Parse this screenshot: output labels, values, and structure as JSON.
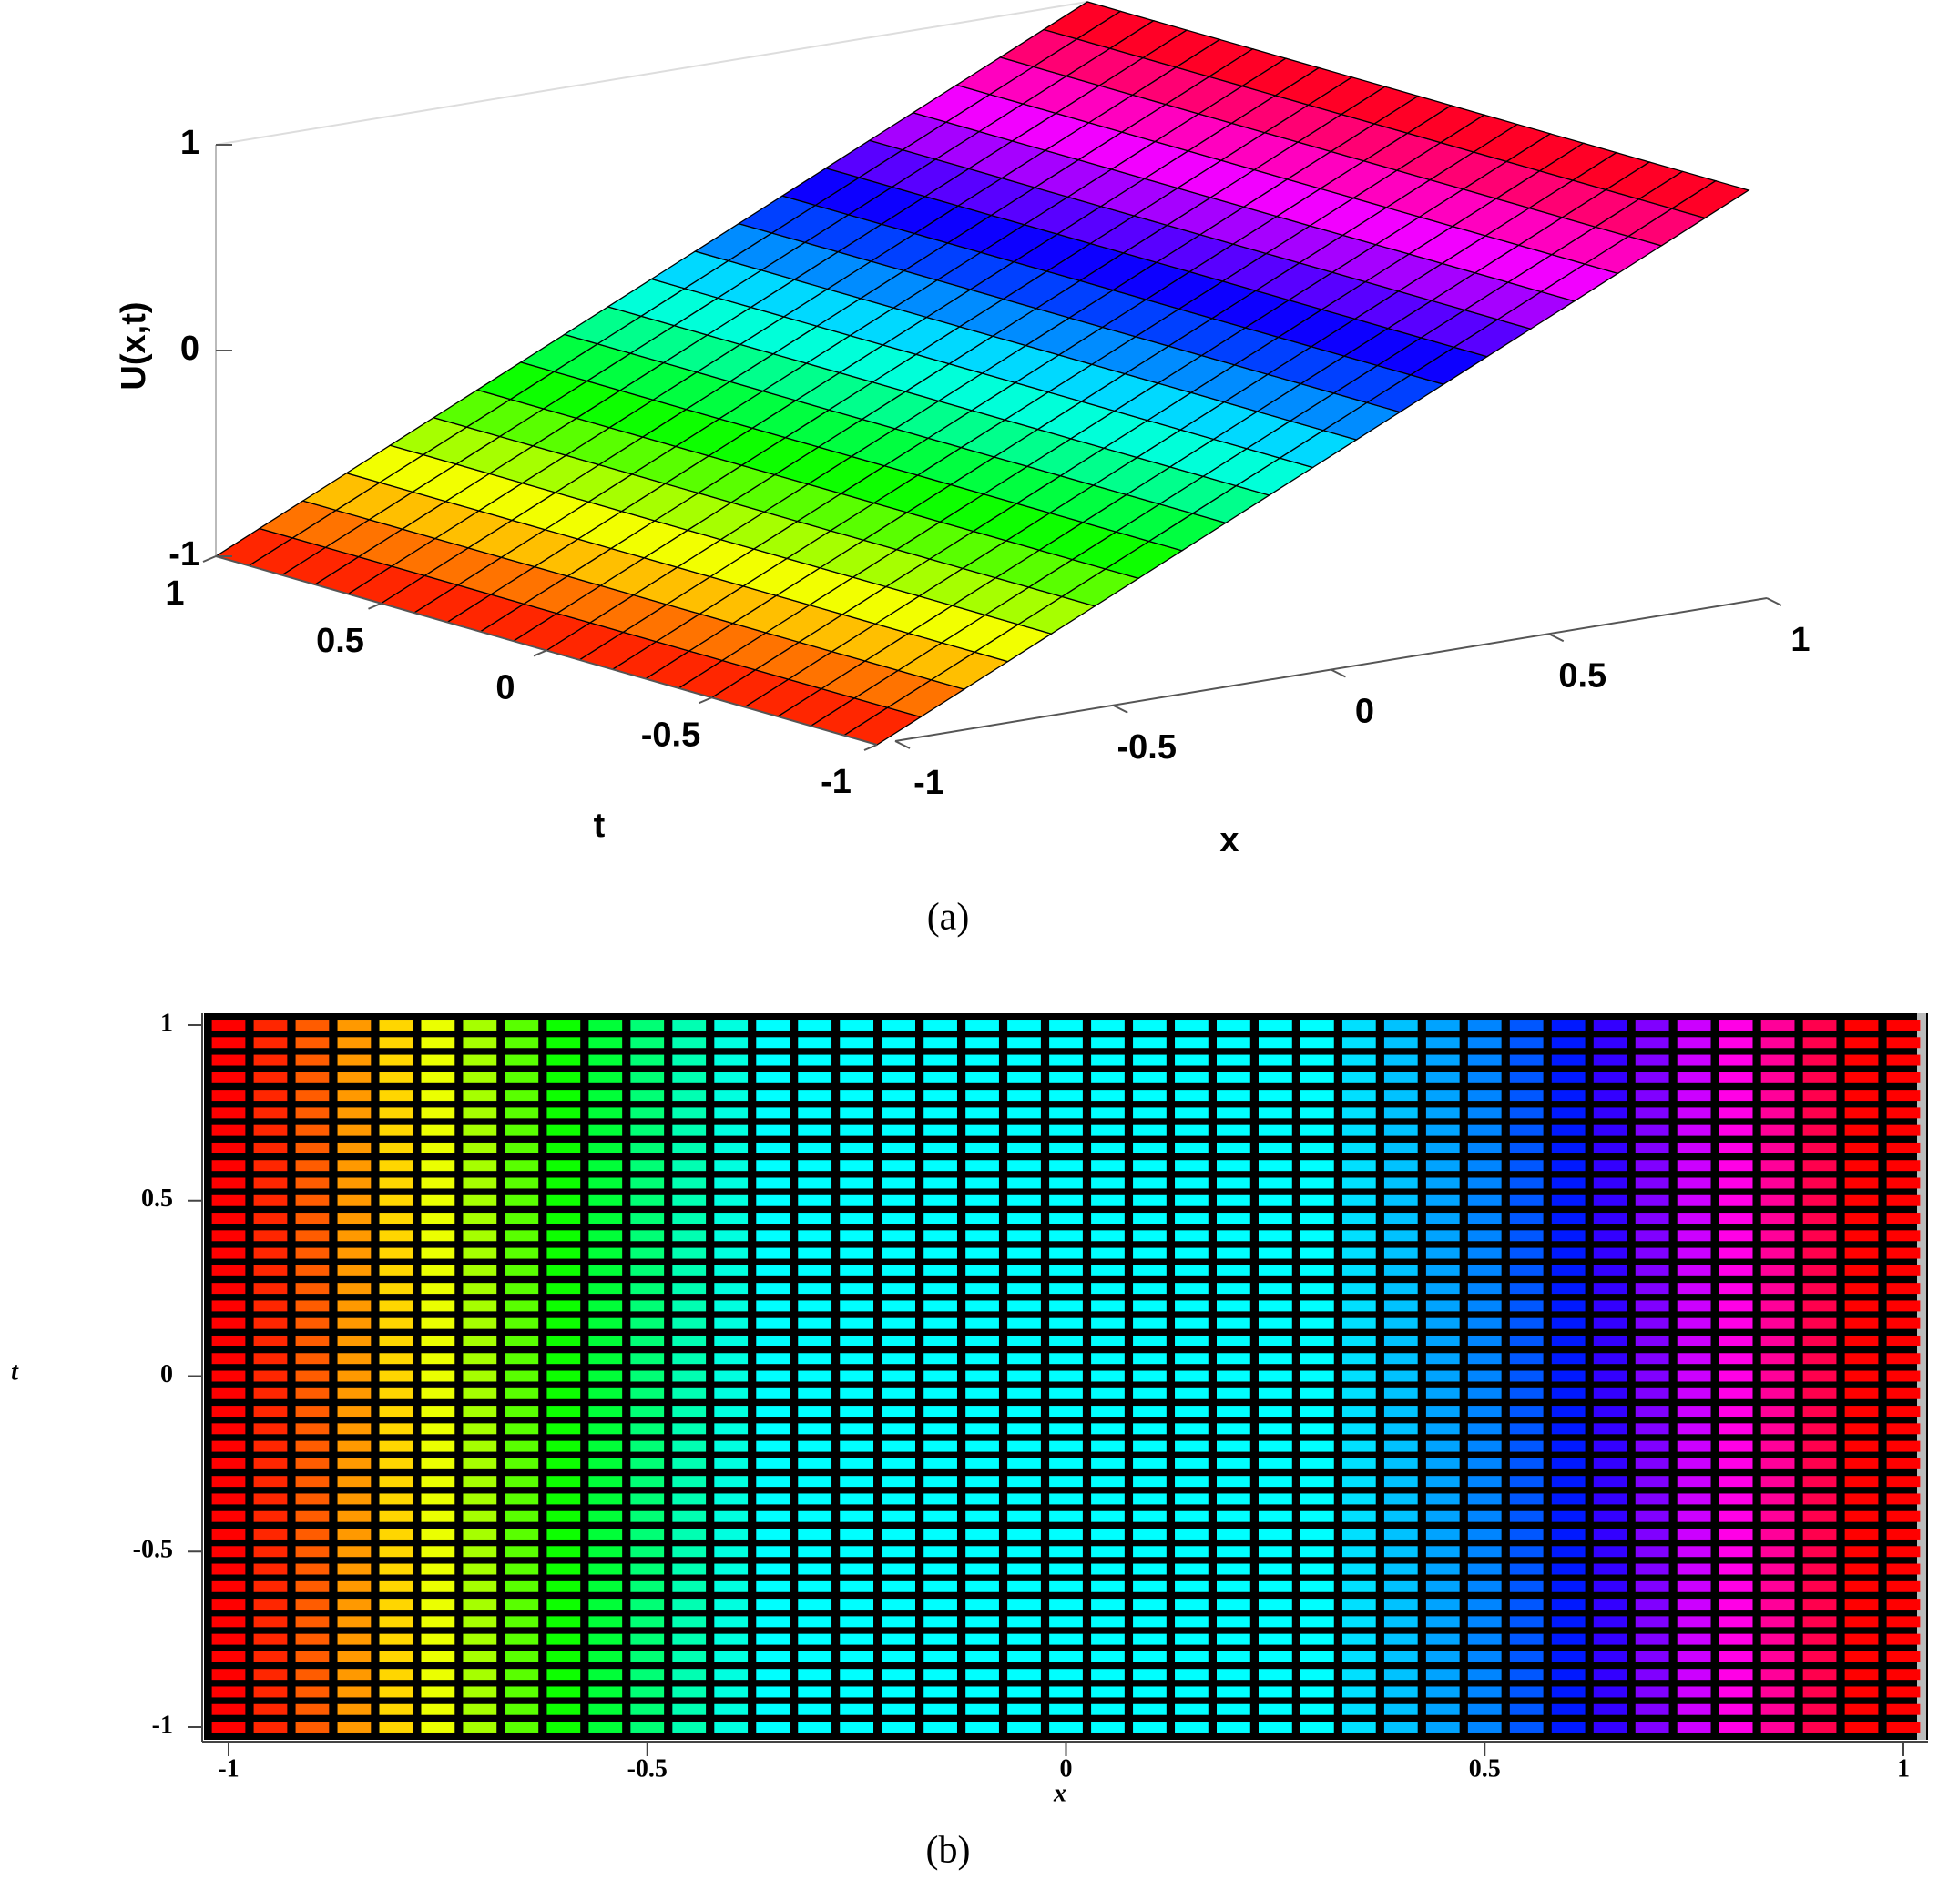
{
  "chart_data": [
    {
      "type": "surface",
      "caption": "(a)",
      "xlabel": "x",
      "ylabel": "t",
      "zlabel": "U(x,t)",
      "x": [
        -1,
        -0.9,
        -0.8,
        -0.7,
        -0.6,
        -0.5,
        -0.4,
        -0.3,
        -0.2,
        -0.1,
        0,
        0.1,
        0.2,
        0.3,
        0.4,
        0.5,
        0.6,
        0.7,
        0.8,
        0.9,
        1
      ],
      "y": [
        -1,
        -0.9,
        -0.8,
        -0.7,
        -0.6,
        -0.5,
        -0.4,
        -0.3,
        -0.2,
        -0.1,
        0,
        0.1,
        0.2,
        0.3,
        0.4,
        0.5,
        0.6,
        0.7,
        0.8,
        0.9,
        1
      ],
      "values": [
        -1,
        -0.9,
        -0.8,
        -0.7,
        -0.6,
        -0.5,
        -0.4,
        -0.3,
        -0.2,
        -0.1,
        0,
        0.1,
        0.2,
        0.3,
        0.4,
        0.5,
        0.6,
        0.7,
        0.8,
        0.9,
        1
      ],
      "xlim": [
        -1,
        1
      ],
      "ylim": [
        -1,
        1
      ],
      "zlim": [
        -1,
        1
      ],
      "xticks": [
        -1,
        -0.5,
        0,
        0.5,
        1
      ],
      "yticks": [
        -1,
        -0.5,
        0,
        0.5,
        1
      ],
      "zticks": [
        -1,
        0,
        1
      ]
    },
    {
      "type": "density",
      "caption": "(b)",
      "xlabel": "x",
      "ylabel": "t",
      "x": [
        -1,
        -0.95,
        -0.9,
        -0.85,
        -0.8,
        -0.75,
        -0.7,
        -0.65,
        -0.6,
        -0.55,
        -0.5,
        -0.45,
        -0.4,
        -0.35,
        -0.3,
        -0.25,
        -0.2,
        -0.15,
        -0.1,
        -0.05,
        0,
        0.05,
        0.1,
        0.15,
        0.2,
        0.25,
        0.3,
        0.35,
        0.4,
        0.45,
        0.5,
        0.55,
        0.6,
        0.65,
        0.7,
        0.75,
        0.8,
        0.85,
        0.9,
        0.95,
        1
      ],
      "y": [
        -1,
        -0.95,
        -0.9,
        -0.85,
        -0.8,
        -0.75,
        -0.7,
        -0.65,
        -0.6,
        -0.55,
        -0.5,
        -0.45,
        -0.4,
        -0.35,
        -0.3,
        -0.25,
        -0.2,
        -0.15,
        -0.1,
        -0.05,
        0,
        0.05,
        0.1,
        0.15,
        0.2,
        0.25,
        0.3,
        0.35,
        0.4,
        0.45,
        0.5,
        0.55,
        0.6,
        0.65,
        0.7,
        0.75,
        0.8,
        0.85,
        0.9,
        0.95,
        1
      ],
      "values": [
        -1,
        -0.95,
        -0.88,
        -0.8,
        -0.72,
        -0.64,
        -0.55,
        -0.45,
        -0.35,
        -0.26,
        -0.18,
        -0.1,
        -0.04,
        0,
        0,
        0,
        0,
        0,
        0,
        0,
        0,
        0,
        0,
        0,
        0,
        0,
        0,
        0.04,
        0.08,
        0.12,
        0.16,
        0.22,
        0.3,
        0.4,
        0.5,
        0.6,
        0.7,
        0.8,
        0.9,
        1,
        1
      ],
      "xlim": [
        -1,
        1
      ],
      "ylim": [
        -1,
        1
      ],
      "xticks": [
        -1,
        -0.5,
        0,
        0.5,
        1
      ],
      "yticks": [
        -1,
        -0.5,
        0,
        0.5,
        1
      ]
    }
  ]
}
